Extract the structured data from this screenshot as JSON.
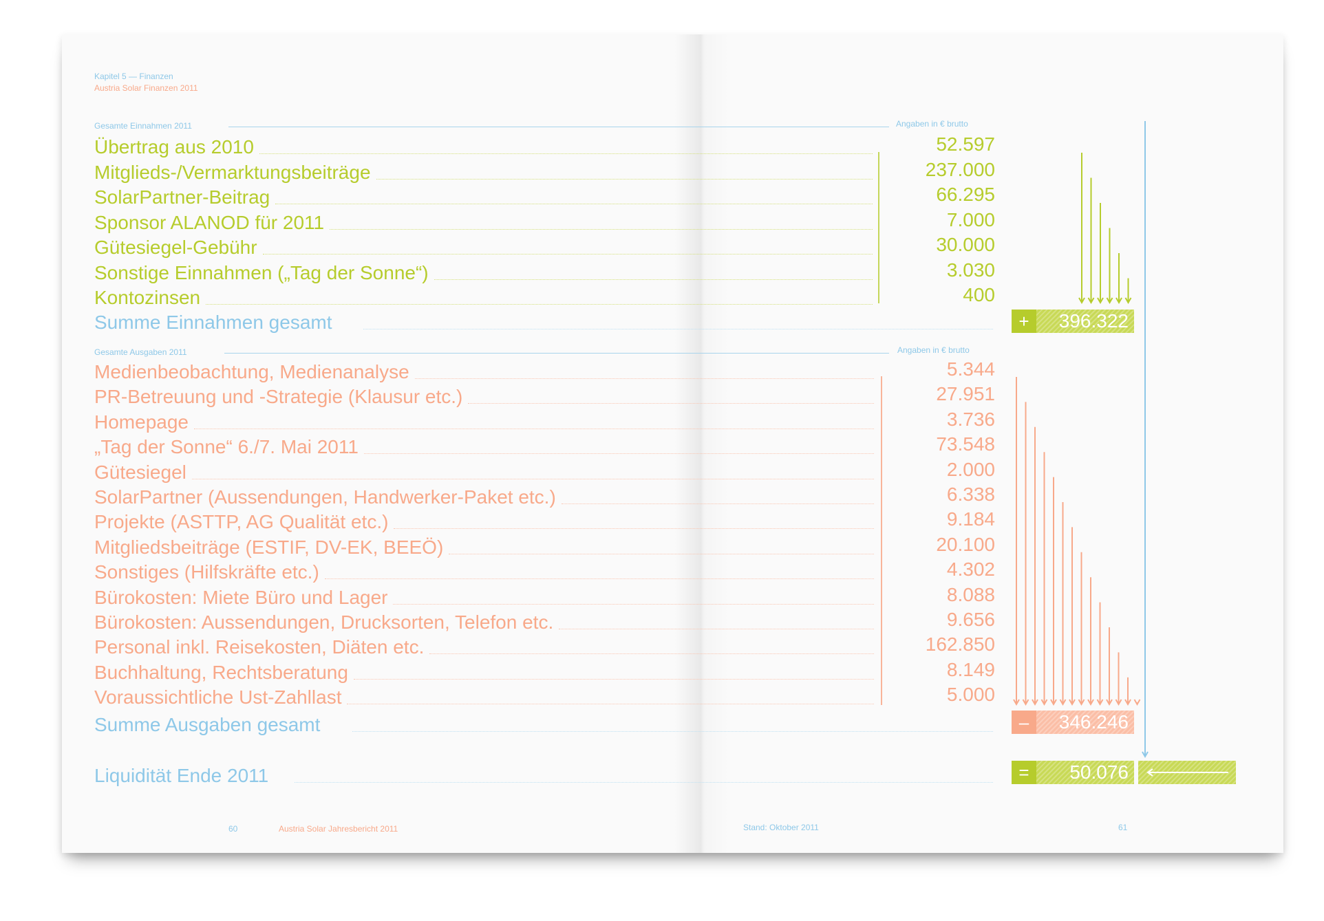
{
  "header": {
    "chapter": "Kapitel 5 — Finanzen",
    "subtitle": "Austria Solar Finanzen 2011"
  },
  "income": {
    "section_title": "Gesamte Einnahmen 2011",
    "unit_note": "Angaben in € brutto",
    "rows": [
      {
        "label": "Übertrag aus 2010",
        "value": "52.597"
      },
      {
        "label": "Mitglieds-/Vermarktungsbeiträge",
        "value": "237.000"
      },
      {
        "label": "SolarPartner-Beitrag",
        "value": "66.295"
      },
      {
        "label": "Sponsor ALANOD für 2011",
        "value": "7.000"
      },
      {
        "label": "Gütesiegel-Gebühr",
        "value": "30.000"
      },
      {
        "label": "Sonstige Einnahmen („Tag der Sonne“)",
        "value": "3.030"
      },
      {
        "label": "Kontozinsen",
        "value": "400"
      }
    ],
    "total_label": "Summe Einnahmen gesamt",
    "total_sign": "+",
    "total_value": "396.322"
  },
  "expenses": {
    "section_title": "Gesamte Ausgaben 2011",
    "unit_note": "Angaben in € brutto",
    "rows": [
      {
        "label": "Medienbeobachtung, Medienanalyse",
        "value": "5.344"
      },
      {
        "label": "PR-Betreuung und -Strategie (Klausur etc.)",
        "value": "27.951"
      },
      {
        "label": "Homepage",
        "value": "3.736"
      },
      {
        "label": "„Tag der Sonne“ 6./7. Mai 2011",
        "value": "73.548"
      },
      {
        "label": "Gütesiegel",
        "value": "2.000"
      },
      {
        "label": "SolarPartner (Aussendungen, Handwerker-Paket etc.)",
        "value": "6.338"
      },
      {
        "label": "Projekte (ASTTP, AG Qualität etc.)",
        "value": "9.184"
      },
      {
        "label": "Mitgliedsbeiträge (ESTIF, DV-EK, BEEÖ)",
        "value": "20.100"
      },
      {
        "label": "Sonstiges (Hilfskräfte etc.)",
        "value": "4.302"
      },
      {
        "label": "Bürokosten: Miete Büro und Lager",
        "value": "8.088"
      },
      {
        "label": "Bürokosten: Aussendungen, Drucksorten, Telefon etc.",
        "value": "9.656"
      },
      {
        "label": "Personal inkl. Reisekosten, Diäten etc.",
        "value": "162.850"
      },
      {
        "label": "Buchhaltung, Rechtsberatung",
        "value": "8.149"
      },
      {
        "label": "Voraussichtliche Ust-Zahllast",
        "value": "5.000"
      }
    ],
    "total_label": "Summe Ausgaben gesamt",
    "total_sign": "–",
    "total_value": "346.246"
  },
  "liquidity": {
    "label": "Liquidität Ende 2011",
    "sign": "=",
    "value": "50.076"
  },
  "footer": {
    "left_page_number": "60",
    "left_title": "Austria Solar Jahresbericht 2011",
    "right_note": "Stand: Oktober 2011",
    "right_page_number": "61"
  },
  "colors": {
    "blue": "#8ec8e8",
    "green": "#b6cc2c",
    "orange": "#f8a98a"
  }
}
